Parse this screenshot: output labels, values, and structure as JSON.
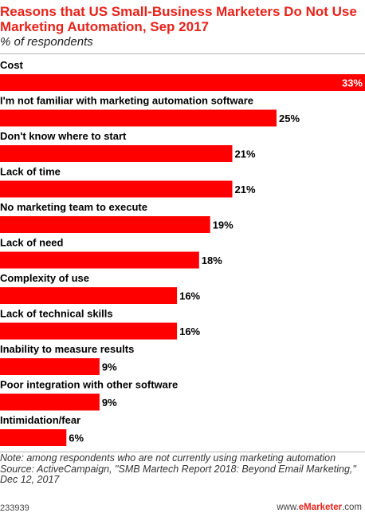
{
  "header": {
    "title": "Reasons that US Small-Business Marketers Do Not Use Marketing Automation, Sep 2017",
    "subtitle": "% of respondents"
  },
  "chart_data": {
    "type": "bar",
    "orientation": "horizontal",
    "categories": [
      "Cost",
      "I'm not familiar with marketing automation software",
      "Don't know where to start",
      "Lack of time",
      "No marketing team to execute",
      "Lack of need",
      "Complexity of use",
      "Lack of technical skills",
      "Inability to measure results",
      "Poor integration with other software",
      "Intimidation/fear"
    ],
    "values": [
      33,
      25,
      21,
      21,
      19,
      18,
      16,
      16,
      9,
      9,
      6
    ],
    "value_labels": [
      "33%",
      "25%",
      "21%",
      "21%",
      "19%",
      "18%",
      "16%",
      "16%",
      "9%",
      "9%",
      "6%"
    ],
    "xlim": [
      0,
      33
    ],
    "grid": false,
    "bar_color": "#ff0000"
  },
  "footer": {
    "note": "Note: among respondents who are not currently using marketing automation",
    "source": "Source: ActiveCampaign, \"SMB Martech Report 2018: Beyond Email Marketing,\" Dec 12, 2017",
    "chart_id": "233939",
    "brand_prefix": "www.",
    "brand_name": "eMarketer",
    "brand_suffix": ".com"
  },
  "colors": {
    "title": "#e8221a",
    "bar": "#ff0000"
  }
}
